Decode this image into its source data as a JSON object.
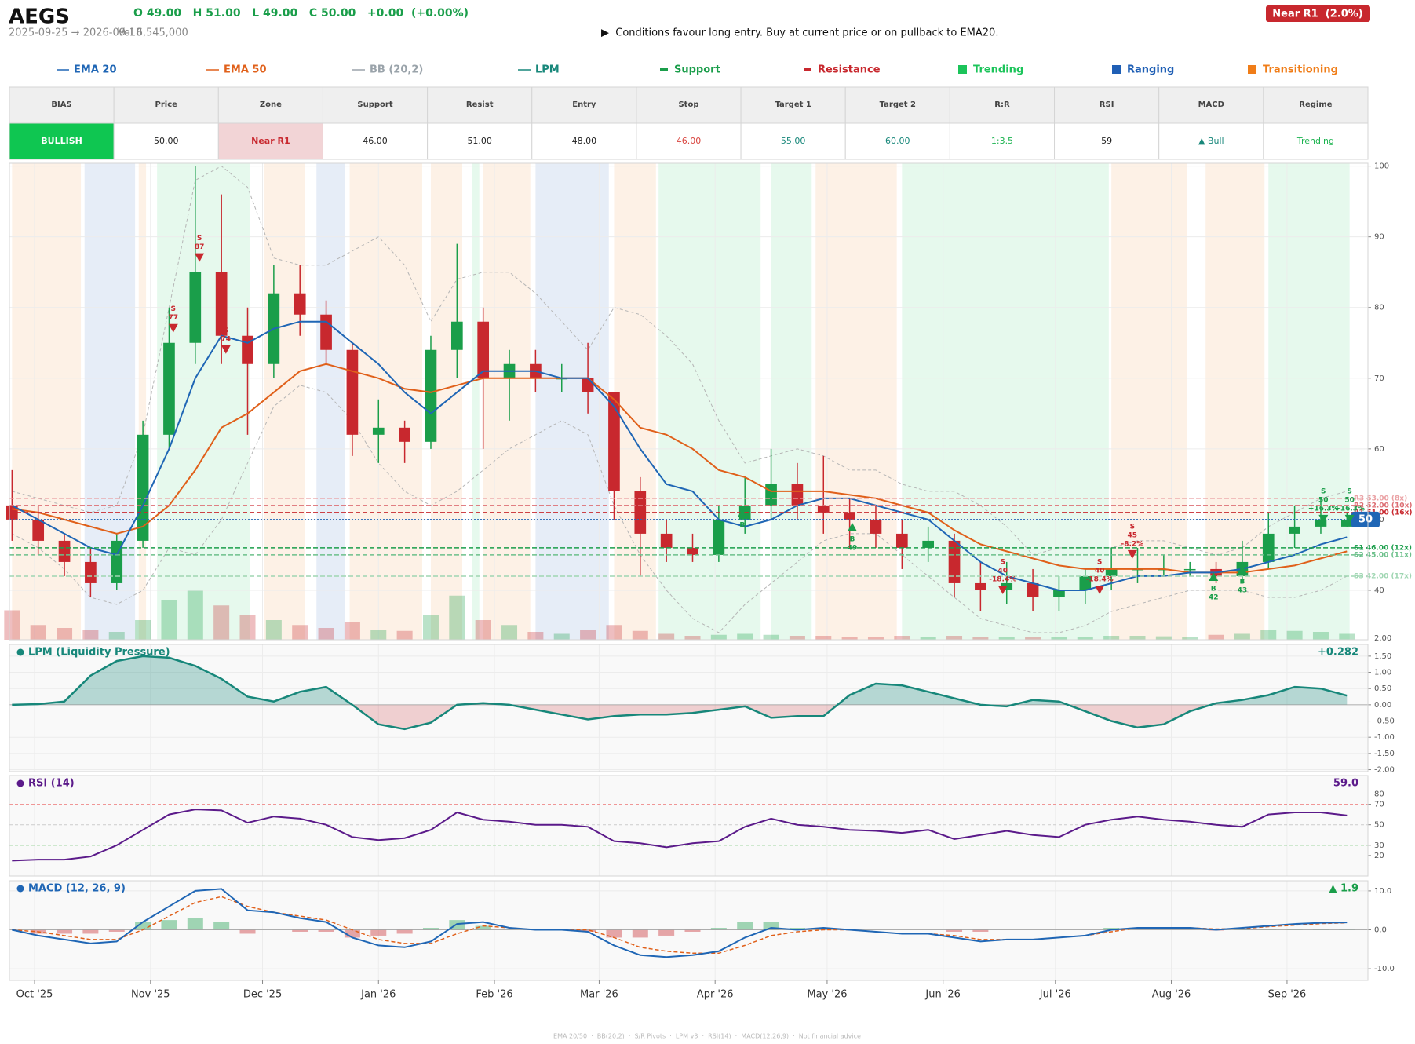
{
  "header": {
    "symbol": "AEGS",
    "ohlc": "O 49.00   H 51.00   L 49.00   C 50.00   +0.00  (+0.00%)",
    "range": "2025-09-25 → 2026-09-18",
    "volume": "Vol 6,545,000",
    "advice": "▶  Conditions favour long entry. Buy at current price or on pullback to EMA20.",
    "badge": "Near R1  (2.0%)"
  },
  "legend": [
    {
      "label": "EMA 20",
      "color": "#1f66b5",
      "shape": "line"
    },
    {
      "label": "EMA 50",
      "color": "#e0601a",
      "shape": "line"
    },
    {
      "label": "BB (20,2)",
      "color": "#9aa3aa",
      "shape": "line"
    },
    {
      "label": "LPM",
      "color": "#17877a",
      "shape": "line"
    },
    {
      "label": "Support",
      "color": "#1b9e4b",
      "shape": "dash"
    },
    {
      "label": "Resistance",
      "color": "#c8282e",
      "shape": "dash"
    },
    {
      "label": "Trending",
      "color": "#1bc45a",
      "shape": "square"
    },
    {
      "label": "Ranging",
      "color": "#1f5fb5",
      "shape": "square"
    },
    {
      "label": "Transitioning",
      "color": "#f07d18",
      "shape": "square"
    }
  ],
  "table": {
    "headers": [
      "BIAS",
      "Price",
      "Zone",
      "Support",
      "Resist",
      "Entry",
      "Stop",
      "Target 1",
      "Target 2",
      "R:R",
      "RSI",
      "MACD",
      "Regime"
    ],
    "row": [
      "BULLISH",
      "50.00",
      "Near R1",
      "46.00",
      "51.00",
      "48.00",
      "46.00",
      "55.00",
      "60.00",
      "1:3.5",
      "59",
      "▲ Bull",
      "Trending"
    ]
  },
  "chart_data": [
    {
      "type": "candlestick",
      "xlim": [
        -0.1,
        51.8
      ],
      "xticks": [
        {
          "value": 0.86,
          "label": "Oct '25"
        },
        {
          "value": 5.29,
          "label": "Nov '25"
        },
        {
          "value": 9.57,
          "label": "Dec '25"
        },
        {
          "value": 14.0,
          "label": "Jan '26"
        },
        {
          "value": 18.43,
          "label": "Feb '26"
        },
        {
          "value": 22.43,
          "label": "Mar '26"
        },
        {
          "value": 26.86,
          "label": "Apr '26"
        },
        {
          "value": 31.14,
          "label": "May '26"
        },
        {
          "value": 35.57,
          "label": "Jun '26"
        },
        {
          "value": 39.86,
          "label": "Jul '26"
        },
        {
          "value": 44.29,
          "label": "Aug '26"
        },
        {
          "value": 48.71,
          "label": "Sep '26"
        }
      ],
      "ylim": [
        33,
        100.4
      ],
      "yticks": [
        40,
        50,
        60,
        70,
        80,
        90,
        100
      ],
      "volume_axis_label": "2.00",
      "grid": true,
      "up_color": "#1a9e4a",
      "down_color": "#c8282e",
      "open": [
        52,
        50,
        47,
        44,
        41,
        47,
        62,
        75,
        85,
        76,
        72,
        82,
        79,
        74,
        62,
        63,
        61,
        74,
        78,
        70,
        72,
        70,
        70,
        68,
        54,
        48,
        46,
        45,
        50,
        52,
        55,
        52,
        51,
        50,
        48,
        46,
        47,
        41,
        40,
        41,
        39,
        40,
        42,
        43,
        43,
        43,
        43,
        42,
        44,
        48,
        49,
        49
      ],
      "high": [
        57,
        52,
        48,
        46,
        48,
        64,
        80,
        100,
        96,
        80,
        86,
        86,
        81,
        75,
        67,
        64,
        76,
        89,
        80,
        74,
        74,
        72,
        75,
        68,
        56,
        50,
        48,
        52,
        56,
        60,
        58,
        59,
        53,
        52,
        50,
        49,
        48,
        44,
        44,
        43,
        42,
        43,
        46,
        46,
        45,
        44,
        44,
        47,
        51,
        52,
        53,
        51
      ],
      "low": [
        47,
        45,
        42,
        39,
        40,
        46,
        60,
        72,
        72,
        62,
        70,
        76,
        72,
        59,
        58,
        58,
        60,
        70,
        60,
        64,
        68,
        68,
        65,
        50,
        42,
        44,
        44,
        44,
        48,
        50,
        50,
        48,
        46,
        46,
        43,
        44,
        39,
        37,
        38,
        37,
        37,
        38,
        40,
        41,
        42,
        42,
        41,
        41,
        43,
        46,
        48,
        49
      ],
      "close": [
        50,
        47,
        44,
        41,
        47,
        62,
        75,
        85,
        76,
        72,
        82,
        79,
        74,
        62,
        63,
        61,
        74,
        78,
        70,
        72,
        70,
        70,
        68,
        54,
        48,
        46,
        45,
        50,
        52,
        55,
        52,
        51,
        50,
        48,
        46,
        47,
        41,
        40,
        41,
        39,
        40,
        42,
        43,
        43,
        43,
        43,
        42,
        44,
        48,
        49,
        50,
        50
      ],
      "volume": [
        300000,
        150000,
        120000,
        100000,
        80000,
        200000,
        400000,
        500000,
        350000,
        250000,
        200000,
        150000,
        120000,
        180000,
        100000,
        90000,
        250000,
        450000,
        200000,
        150000,
        80000,
        60000,
        100000,
        150000,
        90000,
        60000,
        40000,
        50000,
        60000,
        50000,
        40000,
        40000,
        30000,
        30000,
        40000,
        30000,
        40000,
        30000,
        30000,
        25000,
        30000,
        30000,
        40000,
        40000,
        35000,
        30000,
        50000,
        60000,
        100000,
        90000,
        80000,
        60000
      ],
      "volume_lim": [
        0,
        600000
      ],
      "ema20": {
        "color": "#1f66b5",
        "values": [
          52,
          50,
          48,
          46,
          45,
          52,
          60,
          70,
          76,
          75,
          77,
          78,
          78,
          75,
          72,
          68,
          65,
          68,
          71,
          71,
          71,
          70,
          70,
          66,
          60,
          55,
          54,
          50,
          49,
          50,
          52,
          53,
          53,
          52,
          51,
          50,
          47,
          44,
          42,
          41,
          40,
          40,
          41,
          42,
          42,
          42.5,
          42.5,
          43,
          44,
          45,
          46.5,
          47.5
        ]
      },
      "ema50": {
        "color": "#e0601a",
        "values": [
          51.5,
          51,
          50,
          49,
          48,
          49,
          52,
          57,
          63,
          65,
          68,
          71,
          72,
          71,
          70,
          68.5,
          68,
          69,
          70,
          70,
          70,
          70,
          70,
          67,
          63,
          62,
          60,
          57,
          56,
          54,
          54,
          54,
          53.5,
          53,
          52,
          51,
          48.5,
          46.5,
          45.5,
          44.5,
          43.5,
          43,
          43,
          43,
          43,
          42.5,
          42.5,
          42.5,
          43,
          43.5,
          44.5,
          45.5
        ]
      },
      "bb_upper": {
        "color": "#b5b5b5",
        "values": [
          54,
          53,
          52,
          51,
          52,
          62,
          80,
          98,
          100,
          97,
          87,
          86,
          86,
          88,
          90,
          86,
          78,
          84,
          85,
          85,
          82,
          78,
          74,
          80,
          79,
          76,
          72,
          64,
          58,
          59,
          60,
          59,
          57,
          57,
          55,
          54,
          54,
          52,
          49,
          45,
          46,
          46,
          46,
          47,
          47,
          46,
          45,
          46,
          49,
          51,
          53,
          54
        ]
      },
      "bb_lower": {
        "color": "#b5b5b5",
        "values": [
          48,
          46,
          43,
          39,
          38,
          40,
          46,
          45,
          50,
          58,
          66,
          69,
          68,
          64,
          58,
          54,
          52,
          54,
          57,
          60,
          62,
          64,
          62,
          52,
          45,
          40,
          36,
          34,
          38,
          41,
          44,
          47,
          48,
          48,
          45,
          42,
          39,
          36,
          35,
          34,
          34,
          35,
          37,
          38,
          39,
          40,
          40,
          40,
          39,
          39,
          40,
          42
        ]
      },
      "regimes": [
        {
          "kind": "Transitioning",
          "start": 0,
          "end": 2.63
        },
        {
          "kind": "Ranging",
          "start": 2.77,
          "end": 4.7
        },
        {
          "kind": "Transitioning",
          "start": 4.84,
          "end": 5.12
        },
        {
          "kind": "Trending",
          "start": 5.54,
          "end": 9.1
        },
        {
          "kind": "Transitioning",
          "start": 9.62,
          "end": 11.18
        },
        {
          "kind": "Ranging",
          "start": 11.63,
          "end": 12.73
        },
        {
          "kind": "Transitioning",
          "start": 12.9,
          "end": 15.67
        },
        {
          "kind": "Transitioning",
          "start": 16.0,
          "end": 17.2
        },
        {
          "kind": "Trending",
          "start": 17.58,
          "end": 17.85
        },
        {
          "kind": "Transitioning",
          "start": 18.0,
          "end": 19.8
        },
        {
          "kind": "Ranging",
          "start": 20.0,
          "end": 22.8
        },
        {
          "kind": "Transitioning",
          "start": 23.0,
          "end": 24.6
        },
        {
          "kind": "Trending",
          "start": 24.7,
          "end": 28.6
        },
        {
          "kind": "Trending",
          "start": 29.0,
          "end": 30.55
        },
        {
          "kind": "Transitioning",
          "start": 30.7,
          "end": 33.8
        },
        {
          "kind": "Trending",
          "start": 34.0,
          "end": 41.9
        },
        {
          "kind": "Transitioning",
          "start": 42.0,
          "end": 44.9
        },
        {
          "kind": "Transitioning",
          "start": 45.6,
          "end": 47.85
        },
        {
          "kind": "Trending",
          "start": 48.0,
          "end": 51.1
        }
      ],
      "levels": [
        {
          "label": "R3 53.00 (8x)",
          "price": 53,
          "color": "#eaa0a3"
        },
        {
          "label": "R2 52.00 (10x)",
          "price": 52,
          "color": "#dd6f74"
        },
        {
          "label": "R1 51.00 (16x)",
          "price": 51,
          "color": "#c8282e"
        },
        {
          "label": "S1 46.00 (12x)",
          "price": 46,
          "color": "#1b9e4b"
        },
        {
          "label": "S2 45.00 (11x)",
          "price": 45,
          "color": "#6cc08b"
        },
        {
          "label": "S3 42.00 (17x)",
          "price": 42,
          "color": "#9fd6b2"
        }
      ],
      "current": {
        "value": 50,
        "color": "#1f66b5"
      },
      "signals": [
        {
          "x": 6.16,
          "price": 77,
          "text": [
            "S",
            "77"
          ],
          "color": "#c8282e"
        },
        {
          "x": 7.16,
          "price": 87,
          "text": [
            "S",
            "87"
          ],
          "color": "#c8282e"
        },
        {
          "x": 8.17,
          "price": 74,
          "text": [
            "S",
            "74"
          ],
          "color": "#c8282e"
        },
        {
          "x": 27.9,
          "price": 51,
          "text": [
            "B"
          ],
          "color": "#1a9e4a"
        },
        {
          "x": 32.1,
          "price": 49,
          "text": [
            "B",
            "49"
          ],
          "color": "#1a9e4a"
        },
        {
          "x": 37.85,
          "price": 40,
          "text": [
            "S",
            "40",
            "-18.4%"
          ],
          "color": "#c8282e"
        },
        {
          "x": 41.55,
          "price": 40,
          "text": [
            "S",
            "40",
            "-18.4%"
          ],
          "color": "#c8282e"
        },
        {
          "x": 42.8,
          "price": 45,
          "text": [
            "S",
            "45",
            "-8.2%"
          ],
          "color": "#c8282e"
        },
        {
          "x": 45.9,
          "price": 42,
          "text": [
            "B",
            "42"
          ],
          "color": "#1a9e4a"
        },
        {
          "x": 47.0,
          "price": 43,
          "text": [
            "B",
            "43"
          ],
          "color": "#1a9e4a"
        },
        {
          "x": 50.1,
          "price": 50,
          "text": [
            "S",
            "50",
            "+16.3%"
          ],
          "color": "#1a9e4a"
        },
        {
          "x": 51.1,
          "price": 50,
          "text": [
            "S",
            "50",
            "+16.3%"
          ],
          "color": "#1a9e4a"
        }
      ]
    },
    {
      "type": "area",
      "title": "LPM (Liquidity Pressure)",
      "value_label": "+0.282",
      "color": "#17877a",
      "ylim": [
        -2.06,
        1.86
      ],
      "yticks": [
        {
          "value": 1.5,
          "label": "1.50"
        },
        {
          "value": 1,
          "label": "1.00"
        },
        {
          "value": 0.5,
          "label": "0.50"
        },
        {
          "value": 0,
          "label": "0.00"
        },
        {
          "value": -0.5,
          "label": "-0.50"
        },
        {
          "value": -1,
          "label": "-1.00"
        },
        {
          "value": -1.5,
          "label": "-1.50"
        },
        {
          "value": -2,
          "label": "-2.00"
        }
      ],
      "values": [
        0,
        0.02,
        0.1,
        0.9,
        1.35,
        1.5,
        1.45,
        1.2,
        0.8,
        0.25,
        0.1,
        0.4,
        0.55,
        0,
        -0.6,
        -0.75,
        -0.55,
        0,
        0.05,
        0,
        -0.15,
        -0.3,
        -0.45,
        -0.35,
        -0.3,
        -0.3,
        -0.25,
        -0.15,
        -0.05,
        -0.4,
        -0.35,
        -0.35,
        0.3,
        0.65,
        0.6,
        0.4,
        0.2,
        0,
        -0.05,
        0.15,
        0.1,
        -0.2,
        -0.5,
        -0.7,
        -0.6,
        -0.2,
        0.05,
        0.15,
        0.3,
        0.55,
        0.5,
        0.282
      ]
    },
    {
      "type": "line",
      "title": "RSI (14)",
      "value_label": "59.0",
      "color": "#5b1a8a",
      "ylim": [
        0,
        98
      ],
      "yticks": [
        80,
        70,
        50,
        30,
        20
      ],
      "values": [
        15,
        16,
        16,
        19,
        30,
        45,
        60,
        65,
        64,
        52,
        58,
        56,
        50,
        38,
        35,
        37,
        45,
        62,
        55,
        53,
        50,
        50,
        48,
        34,
        32,
        28,
        32,
        34,
        48,
        56,
        50,
        48,
        45,
        44,
        42,
        45,
        36,
        40,
        44,
        40,
        38,
        50,
        55,
        58,
        55,
        53,
        50,
        48,
        60,
        62,
        62,
        59
      ]
    },
    {
      "type": "macd",
      "title": "MACD (12, 26, 9)",
      "value_label": "▲ 1.9",
      "color": "#1f66b5",
      "signal_color": "#e0601a",
      "ylim": [
        -13,
        12.6
      ],
      "yticks": [
        {
          "value": 10,
          "label": "10.0"
        },
        {
          "value": 0,
          "label": "0.0"
        },
        {
          "value": -10,
          "label": "-10.0"
        }
      ],
      "macd": [
        0,
        -1.5,
        -2.5,
        -3.5,
        -3,
        2,
        6,
        10,
        10.5,
        5,
        4.5,
        3,
        2,
        -2,
        -4,
        -4.5,
        -3,
        1.5,
        2,
        0.5,
        0,
        0,
        -0.5,
        -4,
        -6.5,
        -7,
        -6.5,
        -5.5,
        -2,
        0.5,
        0,
        0.5,
        0,
        -0.5,
        -1,
        -1,
        -2,
        -3,
        -2.5,
        -2.5,
        -2,
        -1.5,
        0,
        0.5,
        0.5,
        0.5,
        0,
        0.5,
        1,
        1.5,
        1.8,
        1.9
      ],
      "signal": [
        0,
        -0.5,
        -1.5,
        -2.5,
        -2.5,
        0,
        3.5,
        7,
        8.5,
        6,
        4.5,
        3.5,
        2.5,
        0,
        -2.5,
        -3.5,
        -3.5,
        -1,
        1,
        0.5,
        0,
        0,
        0,
        -2,
        -4.5,
        -5.5,
        -6,
        -6,
        -4,
        -1.5,
        -0.5,
        0,
        0,
        -0.5,
        -1,
        -1,
        -1.5,
        -2.5,
        -2.5,
        -2.5,
        -2,
        -1.5,
        -0.5,
        0.5,
        0.5,
        0.5,
        0.2,
        0.3,
        0.8,
        1.2,
        1.6,
        1.8
      ],
      "histogram": [
        0,
        -1,
        -1,
        -1,
        -0.5,
        2,
        2.5,
        3,
        2,
        -1,
        0,
        -0.5,
        -0.5,
        -2,
        -1.5,
        -1,
        0.5,
        2.5,
        1,
        0,
        0,
        0,
        -0.5,
        -2,
        -2,
        -1.5,
        -0.5,
        0.5,
        2,
        2,
        0.5,
        0.5,
        0,
        0,
        0,
        0,
        -0.5,
        -0.5,
        0,
        0,
        0,
        0,
        0.5,
        0,
        0,
        0,
        -0.2,
        0.2,
        0.2,
        0.3,
        0.2,
        0.1
      ]
    }
  ],
  "footer": "EMA 20/50  ·  BB(20,2)  ·  S/R Pivots  ·  LPM v3  ·  RSI(14)  ·  MACD(12,26,9)  ·  Not financial advice"
}
